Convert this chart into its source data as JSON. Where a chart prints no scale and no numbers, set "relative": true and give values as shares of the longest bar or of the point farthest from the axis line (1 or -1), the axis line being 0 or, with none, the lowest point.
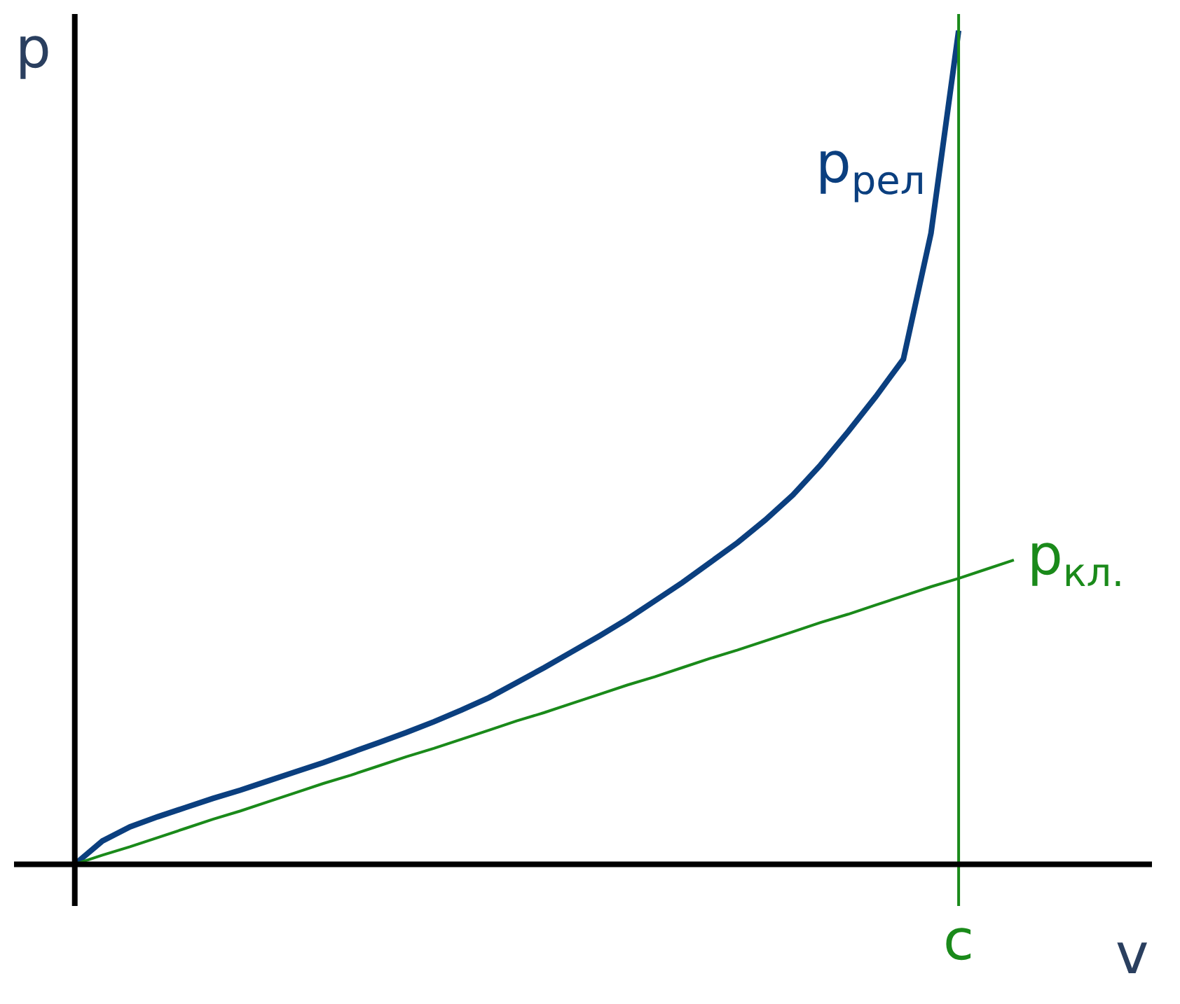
{
  "chart_data": {
    "type": "line",
    "relative": true,
    "xlabel": "v",
    "ylabel": "p",
    "legend": false,
    "categories": [
      null,
      null,
      null,
      null,
      null,
      null,
      null,
      null,
      null,
      null,
      null,
      null,
      null,
      null,
      null,
      null,
      null,
      null,
      null,
      null,
      null,
      null,
      null,
      null,
      null,
      null,
      null,
      null,
      null,
      null,
      null,
      null,
      null,
      null,
      null
    ],
    "series": [
      {
        "name": "p$_{рел}$",
        "color": "#0b3f7f",
        "values": [
          0,
          0.028,
          0.045,
          0.057,
          0.068,
          0.079,
          0.089,
          0.1,
          0.111,
          0.122,
          0.134,
          0.146,
          0.158,
          0.171,
          0.185,
          0.2,
          0.218,
          0.236,
          0.255,
          0.274,
          0.294,
          0.316,
          0.338,
          0.362,
          0.386,
          0.413,
          0.443,
          0.479,
          0.519,
          0.561,
          0.606,
          0.757,
          1.0,
          null,
          null
        ]
      },
      {
        "name": "p$_{кл.}$",
        "color": "#1a8a1a",
        "values": [
          0,
          0.011,
          0.021,
          0.032,
          0.043,
          0.054,
          0.064,
          0.075,
          0.086,
          0.097,
          0.107,
          0.118,
          0.129,
          0.139,
          0.15,
          0.161,
          0.172,
          0.182,
          0.193,
          0.204,
          0.215,
          0.225,
          0.236,
          0.247,
          0.257,
          0.268,
          0.279,
          0.29,
          0.3,
          0.311,
          0.322,
          0.333,
          0.343,
          0.354,
          0.365
        ]
      }
    ],
    "ref_lines": [
      {
        "axis": "x",
        "label": "c",
        "color": "#1a8a1a"
      }
    ]
  }
}
